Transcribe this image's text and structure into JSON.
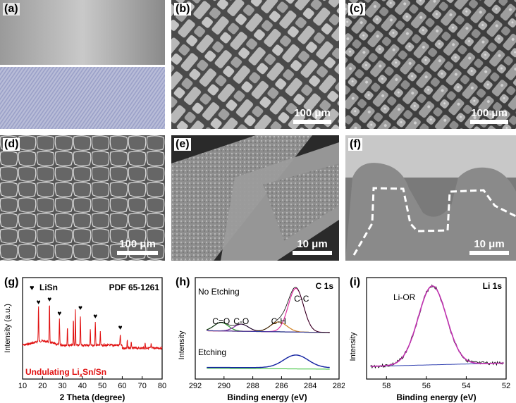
{
  "panels": {
    "a": {
      "label": "(a)"
    },
    "b": {
      "label": "(b)",
      "scale": "100 μm"
    },
    "c": {
      "label": "(c)",
      "scale": "100 μm"
    },
    "d": {
      "label": "(d)",
      "scale": "100 μm"
    },
    "e": {
      "label": "(e)",
      "scale": "10 μm"
    },
    "f": {
      "label": "(f)",
      "scale": "10 μm"
    }
  },
  "chart_data": [
    {
      "id": "g",
      "label": "(g)",
      "type": "line",
      "legend_marker": "♥",
      "legend_text": "LiSn",
      "ref_text": "PDF 65-1261",
      "sample_label_pre": "Undulating Li",
      "sample_label_sub": "x",
      "sample_label_post": "Sn/Sn",
      "xlabel": "2 Theta (degree)",
      "ylabel": "Intensity (a.u.)",
      "xlim": [
        10,
        80
      ],
      "xticks": [
        "10",
        "20",
        "30",
        "40",
        "50",
        "60",
        "70",
        "80"
      ],
      "series_color": "#e01010",
      "peaks_marked": [
        18.0,
        23.5,
        28.5,
        39.0,
        46.5,
        59.0
      ],
      "peaks_other": [
        32.5,
        35.5,
        36.5,
        44.0,
        49.0,
        62.5,
        64.5,
        71.5,
        74.5
      ]
    },
    {
      "id": "h",
      "label": "(h)",
      "type": "line",
      "title": "C 1s",
      "group1": "No Etching",
      "group2": "Etching",
      "peak_labels": [
        "C=O",
        "C-O",
        "C-H",
        "C-C"
      ],
      "peak_positions": [
        290.2,
        288.8,
        286.2,
        285.0
      ],
      "xlabel": "Binding energy (eV)",
      "ylabel": "Intensity",
      "xlim": [
        292,
        282
      ],
      "xticks": [
        "292",
        "290",
        "288",
        "286",
        "284",
        "282"
      ]
    },
    {
      "id": "i",
      "label": "(i)",
      "type": "line",
      "title": "Li 1s",
      "peak_label": "Li-OR",
      "peak_position": 55.7,
      "xlabel": "Binding energy (eV)",
      "ylabel": "Intensity",
      "xlim": [
        59,
        52
      ],
      "xticks": [
        "58",
        "56",
        "54",
        "52"
      ]
    }
  ]
}
